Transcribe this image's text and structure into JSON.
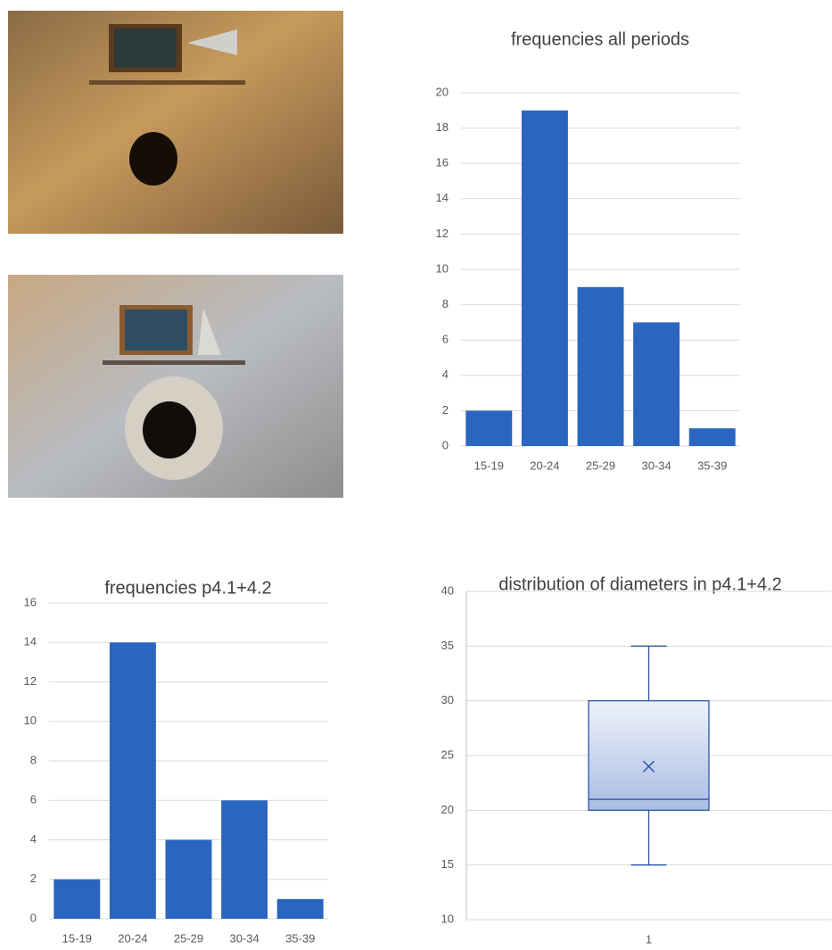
{
  "chart_data": [
    {
      "type": "bar",
      "title": "frequencies all periods",
      "categories": [
        "15-19",
        "20-24",
        "25-29",
        "30-34",
        "35-39"
      ],
      "values": [
        2,
        19,
        9,
        7,
        1
      ],
      "color": "#2a66c0",
      "ylim": [
        0,
        20
      ],
      "yticks": [
        0,
        2,
        4,
        6,
        8,
        10,
        12,
        14,
        16,
        18,
        20
      ],
      "grid": true
    },
    {
      "type": "bar",
      "title": "frequencies p4.1+4.2",
      "categories": [
        "15-19",
        "20-24",
        "25-29",
        "30-34",
        "35-39"
      ],
      "values": [
        2,
        14,
        4,
        6,
        1
      ],
      "color": "#2a66c0",
      "ylim": [
        0,
        16
      ],
      "yticks": [
        0,
        2,
        4,
        6,
        8,
        10,
        12,
        14,
        16
      ],
      "grid": true
    },
    {
      "type": "box",
      "title": "distribution of diameters in p4.1+4.2",
      "categories": [
        "1"
      ],
      "stats": {
        "min": 15,
        "q1": 20,
        "median": 21,
        "q3": 30,
        "max": 35,
        "mean": 24
      },
      "color": "#2f55a4",
      "ylim": [
        10,
        40
      ],
      "yticks": [
        10,
        15,
        20,
        25,
        30,
        35,
        40
      ],
      "grid": true
    }
  ]
}
